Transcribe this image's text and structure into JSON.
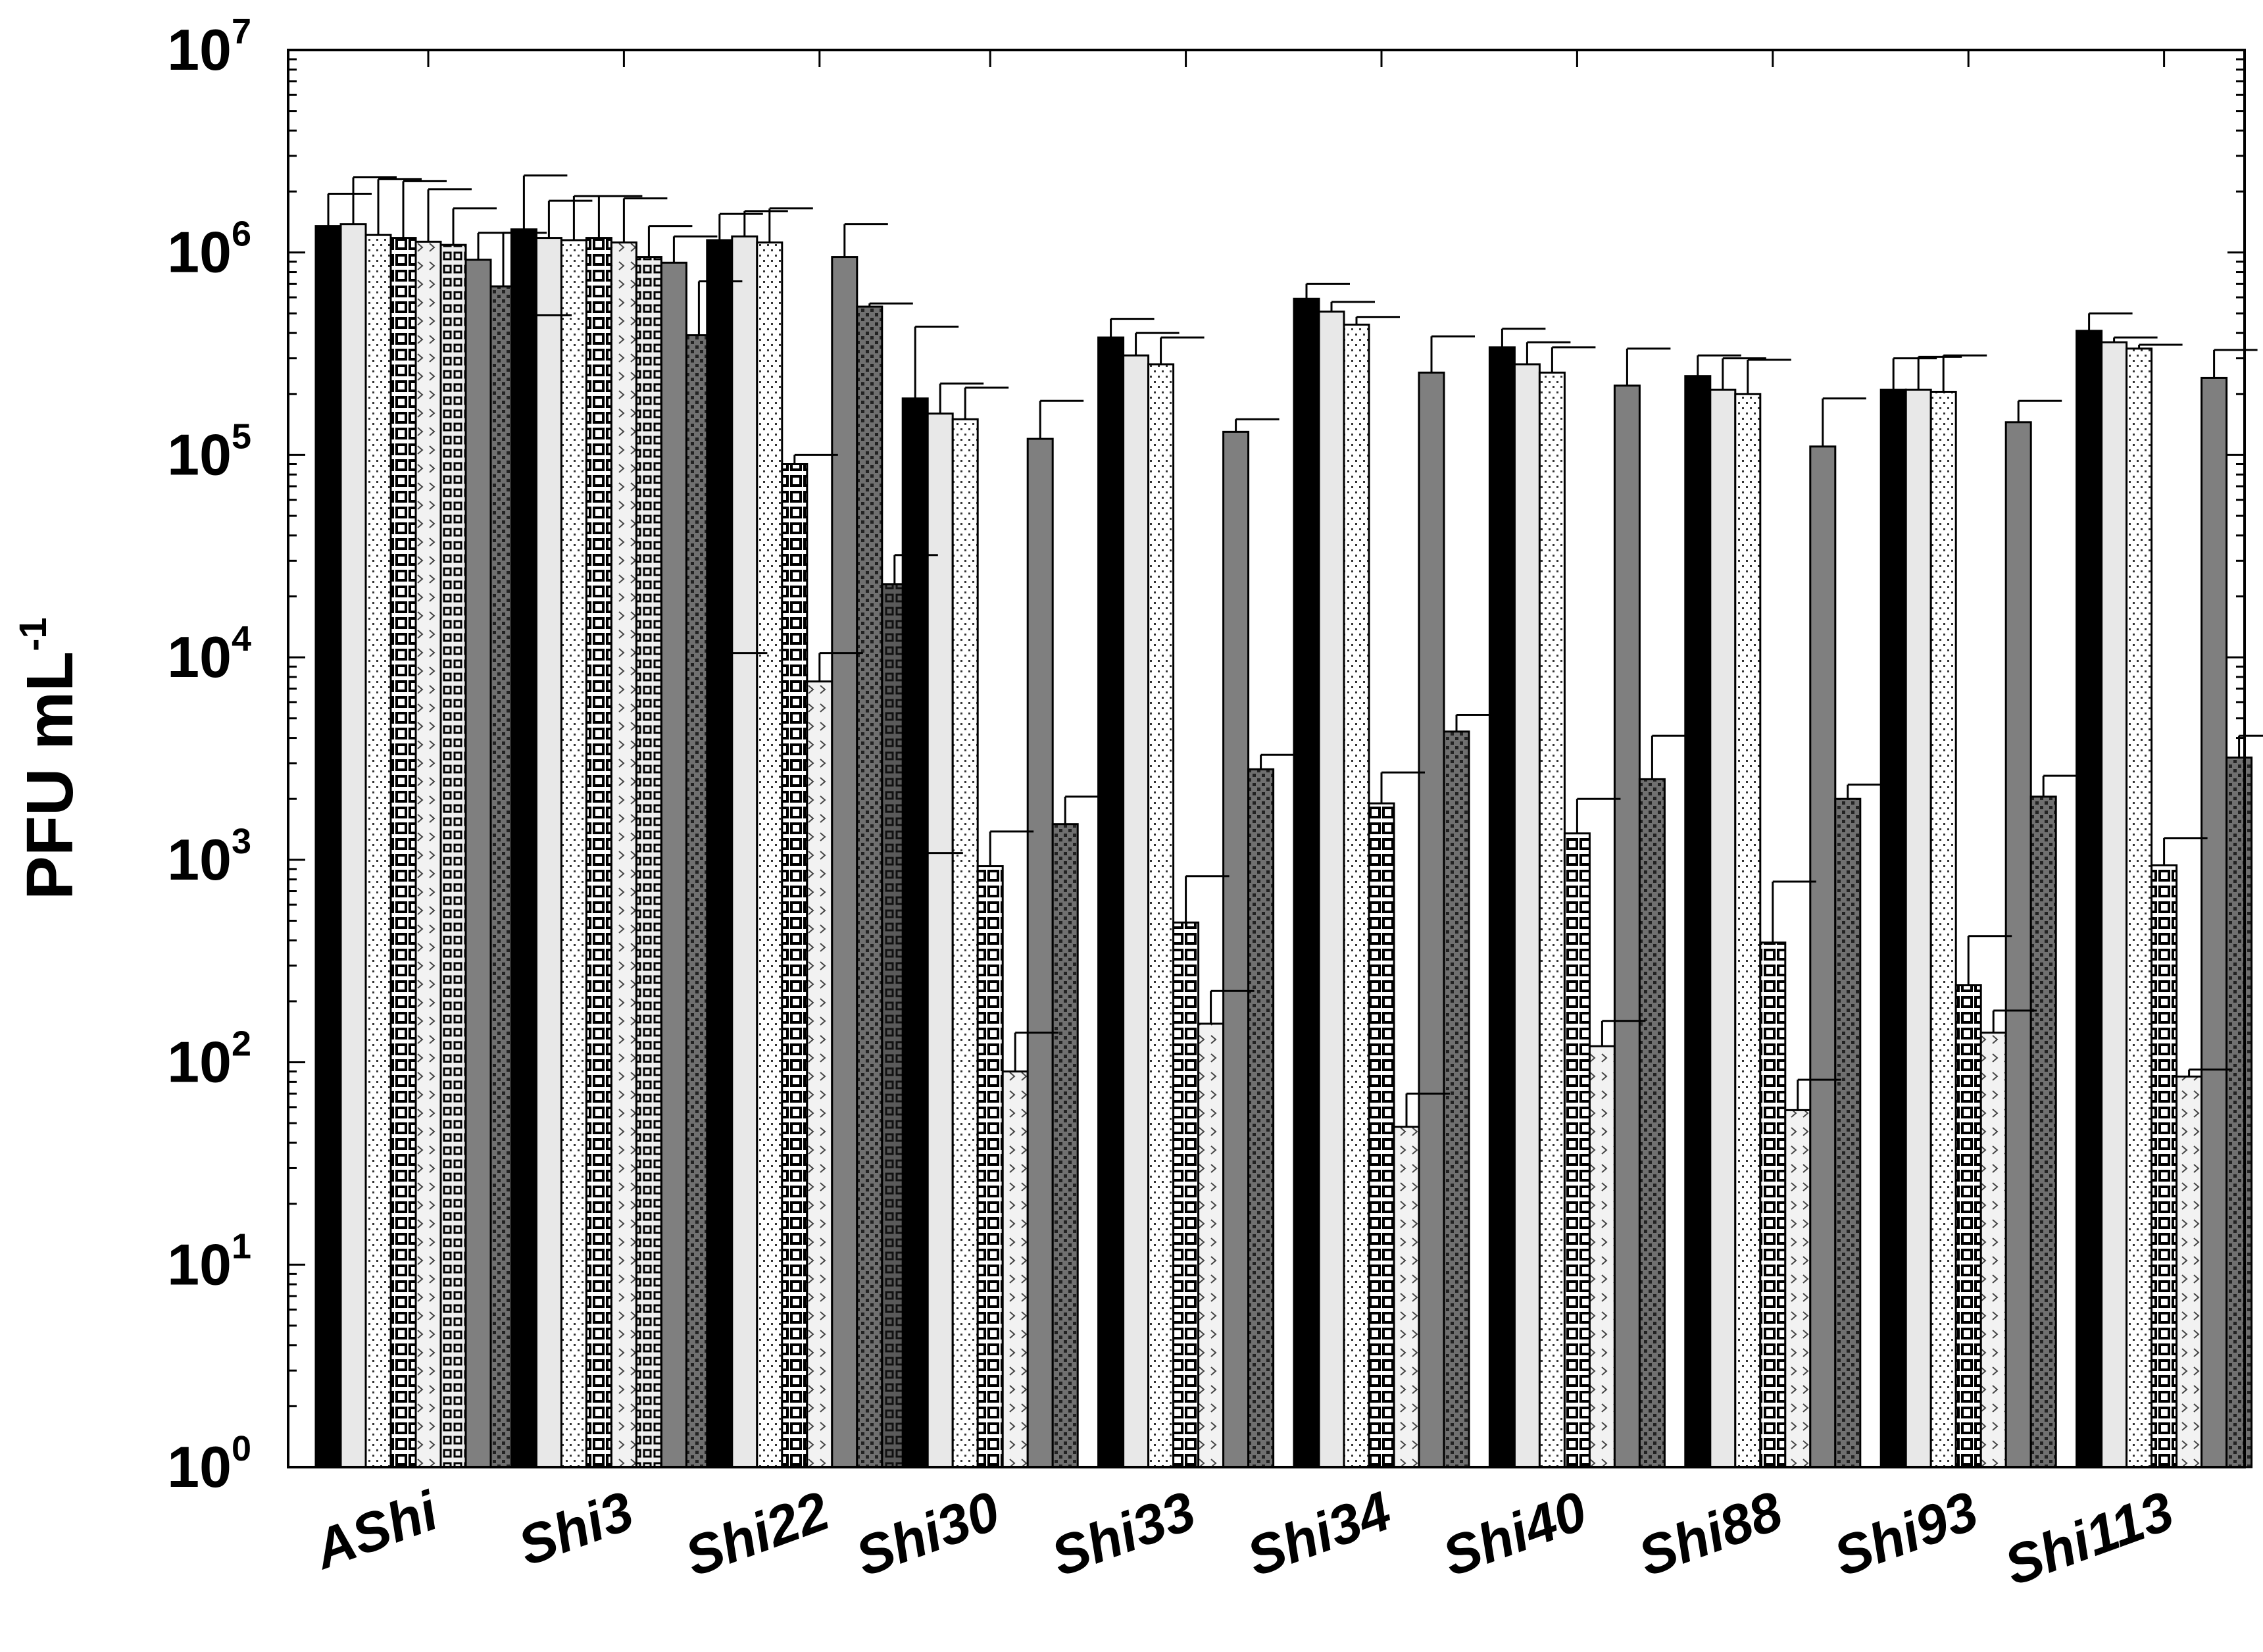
{
  "chart_data": {
    "type": "bar",
    "title": "",
    "xlabel": "",
    "ylabel": "PFU mL",
    "ylabel_superscript": "-1",
    "yscale": "log",
    "ylim": [
      1,
      10000000
    ],
    "yticks": [
      {
        "base": "10",
        "exp": "0"
      },
      {
        "base": "10",
        "exp": "1"
      },
      {
        "base": "10",
        "exp": "2"
      },
      {
        "base": "10",
        "exp": "3"
      },
      {
        "base": "10",
        "exp": "4"
      },
      {
        "base": "10",
        "exp": "5"
      },
      {
        "base": "10",
        "exp": "6"
      },
      {
        "base": "10",
        "exp": "7"
      }
    ],
    "grid": false,
    "legend": "none",
    "categories": [
      "AShi",
      "Shi3",
      "Shi22",
      "Shi30",
      "Shi33",
      "Shi34",
      "Shi40",
      "Shi88",
      "Shi93",
      "Shi113"
    ],
    "series": [
      {
        "style": "solid-black",
        "values": [
          1350000,
          1300000,
          1150000,
          190000,
          380000,
          590000,
          340000,
          245000,
          210000,
          410000
        ],
        "errors": [
          1950000,
          2400000,
          1550000,
          430000,
          470000,
          700000,
          420000,
          310000,
          300000,
          500000
        ]
      },
      {
        "style": "light-gray",
        "values": [
          1380000,
          1180000,
          1200000,
          160000,
          310000,
          510000,
          280000,
          210000,
          210000,
          360000
        ],
        "errors": [
          2350000,
          1800000,
          1600000,
          225000,
          400000,
          570000,
          360000,
          300000,
          305000,
          380000
        ]
      },
      {
        "style": "dotted",
        "values": [
          1220000,
          1150000,
          1120000,
          150000,
          280000,
          440000,
          255000,
          200000,
          205000,
          335000
        ],
        "errors": [
          2300000,
          1900000,
          1650000,
          215000,
          380000,
          480000,
          340000,
          295000,
          310000,
          350000
        ]
      },
      {
        "style": "brick",
        "values": [
          1180000,
          1180000,
          90000,
          930,
          490,
          1900,
          1350,
          390,
          240,
          940
        ],
        "errors": [
          2250000,
          1900000,
          100000,
          1380,
          830,
          2700,
          2000,
          780,
          420,
          1280
        ]
      },
      {
        "style": "chevron",
        "values": [
          1130000,
          1120000,
          7600,
          90,
          155,
          48,
          120,
          58,
          140,
          85
        ],
        "errors": [
          2050000,
          1850000,
          10500,
          140,
          225,
          70,
          160,
          82,
          180,
          92
        ]
      },
      {
        "style": "brick-small",
        "values": [
          1090000,
          950000,
          0,
          0,
          0,
          0,
          0,
          0,
          0,
          0
        ],
        "errors": [
          1650000,
          1350000,
          0,
          0,
          0,
          0,
          0,
          0,
          0,
          0
        ]
      },
      {
        "style": "medium-gray",
        "values": [
          920000,
          890000,
          950000,
          120000,
          130000,
          255000,
          220000,
          110000,
          145000,
          240000
        ],
        "errors": [
          1250000,
          1200000,
          1380000,
          185000,
          150000,
          385000,
          335000,
          190000,
          185000,
          330000
        ]
      },
      {
        "style": "checker-dark",
        "values": [
          680000,
          390000,
          540000,
          1500,
          2800,
          4300,
          2500,
          2000,
          2050,
          3200
        ],
        "errors": [
          1250000,
          720000,
          560000,
          2050,
          3300,
          5200,
          4100,
          2350,
          2600,
          4100
        ]
      },
      {
        "style": "dark-brick",
        "values": [
          340000,
          8600,
          23000,
          0,
          0,
          0,
          0,
          0,
          0,
          0
        ],
        "errors": [
          490000,
          10500,
          32000,
          0,
          0,
          0,
          0,
          0,
          0,
          0
        ]
      },
      {
        "style": "dark-checker",
        "values": [
          0,
          0,
          780,
          0,
          0,
          0,
          0,
          0,
          0,
          0
        ],
        "errors": [
          0,
          0,
          1080,
          0,
          0,
          0,
          0,
          0,
          0,
          0
        ]
      }
    ]
  }
}
